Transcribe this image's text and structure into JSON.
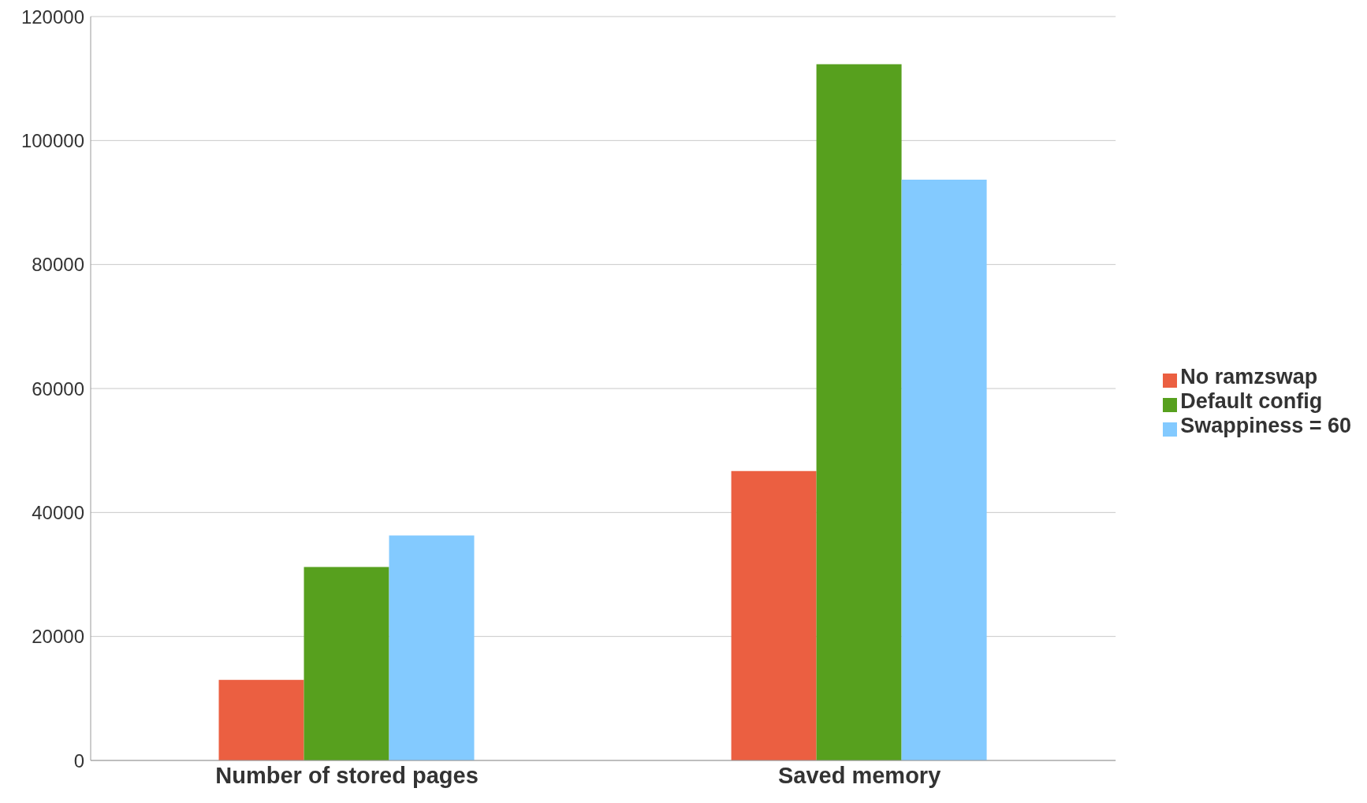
{
  "chart_data": {
    "type": "bar",
    "categories": [
      "Number of stored pages",
      "Saved memory"
    ],
    "series": [
      {
        "name": "No ramzswap",
        "color": "#eb5f41",
        "values": [
          13000,
          46700
        ]
      },
      {
        "name": "Default config",
        "color": "#57a01e",
        "values": [
          31200,
          112300
        ]
      },
      {
        "name": "Swappiness = 60",
        "color": "#83caff",
        "values": [
          36300,
          93700
        ]
      }
    ],
    "ylim": [
      0,
      120000
    ],
    "yticks": [
      0,
      20000,
      40000,
      60000,
      80000,
      100000,
      120000
    ],
    "grid": "y",
    "legend": "right"
  }
}
